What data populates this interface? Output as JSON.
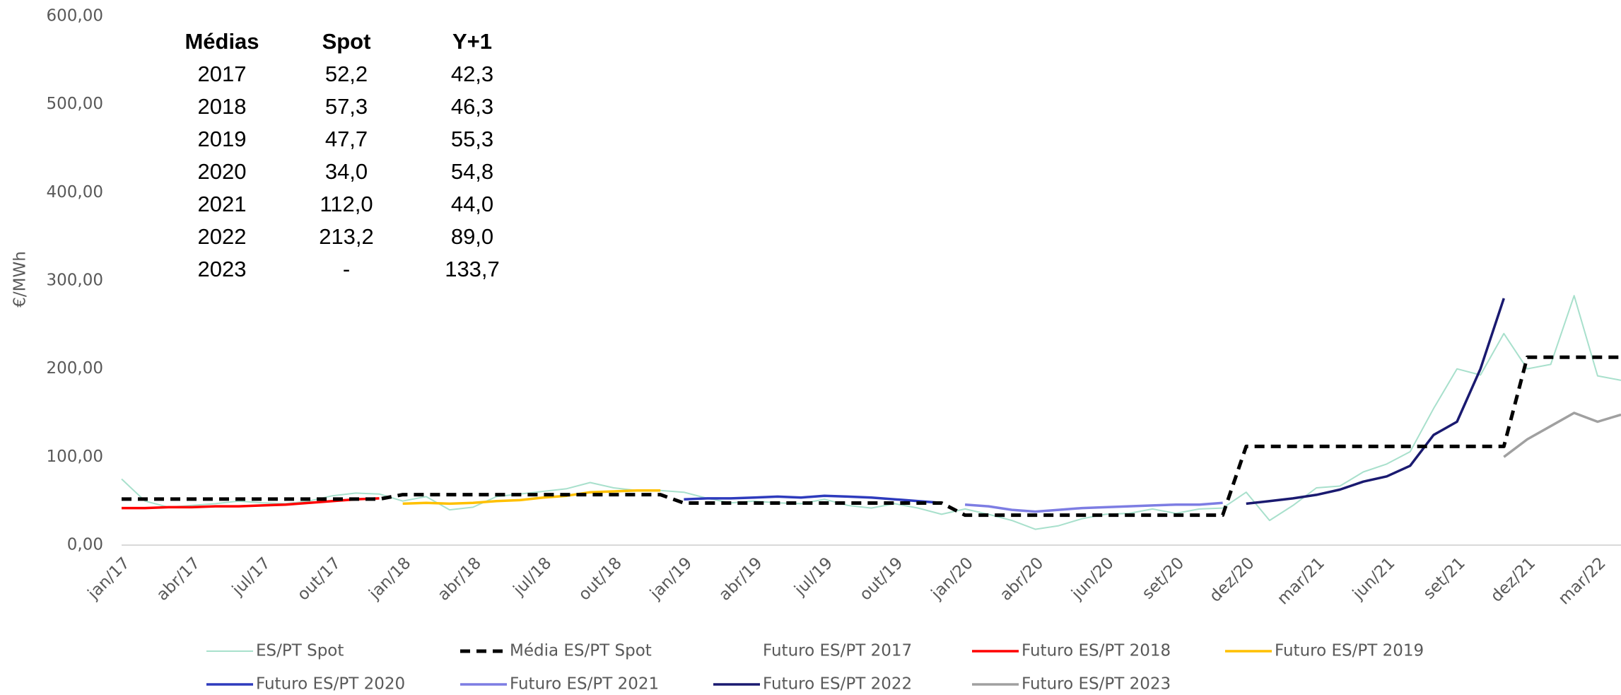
{
  "chart_data": {
    "type": "line",
    "y_label": "€/MWh",
    "ylim": [
      0,
      600
    ],
    "yticks": [
      {
        "value": 0,
        "label": "0,00"
      },
      {
        "value": 100,
        "label": "100,00"
      },
      {
        "value": 200,
        "label": "200,00"
      },
      {
        "value": 300,
        "label": "300,00"
      },
      {
        "value": 400,
        "label": "400,00"
      },
      {
        "value": 500,
        "label": "500,00"
      },
      {
        "value": 600,
        "label": "600,00"
      }
    ],
    "grid": false,
    "categories": [
      "jan/17",
      null,
      null,
      "abr/17",
      null,
      null,
      "jul/17",
      null,
      null,
      "out/17",
      null,
      null,
      "jan/18",
      null,
      null,
      "abr/18",
      null,
      null,
      "jul/18",
      null,
      null,
      "out/18",
      null,
      null,
      "jan/19",
      null,
      null,
      "abr/19",
      null,
      null,
      "jul/19",
      null,
      null,
      "out/19",
      null,
      null,
      "jan/20",
      null,
      null,
      "abr/20",
      null,
      null,
      "jun/20",
      null,
      null,
      "set/20",
      null,
      null,
      "dez/20",
      null,
      null,
      "mar/21",
      null,
      null,
      "jun/21",
      null,
      null,
      "set/21",
      null,
      null,
      "dez/21",
      null,
      null,
      "mar/22",
      null
    ],
    "series": [
      {
        "name": "ES/PT Spot",
        "color": "#a8e0cc",
        "width": 2,
        "values": [
          75,
          50,
          43,
          45,
          47,
          50,
          48,
          47,
          50,
          56,
          59,
          58,
          50,
          55,
          40,
          43,
          55,
          58,
          61,
          64,
          71,
          65,
          62,
          62,
          60,
          53,
          48,
          50,
          48,
          47,
          52,
          45,
          42,
          47,
          42,
          35,
          41,
          35,
          28,
          18,
          22,
          30,
          35,
          36,
          41,
          36,
          41,
          42,
          60,
          28,
          45,
          65,
          67,
          83,
          92,
          106,
          155,
          200,
          193,
          240,
          200,
          205,
          283,
          192,
          187
        ]
      },
      {
        "name": "Média ES/PT Spot",
        "color": "#000000",
        "width": 5,
        "dashed": true,
        "values": [
          52.2,
          52.2,
          52.2,
          52.2,
          52.2,
          52.2,
          52.2,
          52.2,
          52.2,
          52.2,
          52.2,
          52.2,
          57.3,
          57.3,
          57.3,
          57.3,
          57.3,
          57.3,
          57.3,
          57.3,
          57.3,
          57.3,
          57.3,
          57.3,
          47.7,
          47.7,
          47.7,
          47.7,
          47.7,
          47.7,
          47.7,
          47.7,
          47.7,
          47.7,
          47.7,
          47.7,
          34.0,
          34.0,
          34.0,
          34.0,
          34.0,
          34.0,
          34.0,
          34.0,
          34.0,
          34.0,
          34.0,
          34.0,
          112.0,
          112.0,
          112.0,
          112.0,
          112.0,
          112.0,
          112.0,
          112.0,
          112.0,
          112.0,
          112.0,
          112.0,
          213.2,
          213.2,
          213.2,
          213.2,
          213.2
        ]
      },
      {
        "name": "Futuro ES/PT 2017",
        "values": [
          null,
          null,
          null,
          null,
          null,
          null,
          null,
          null,
          null,
          null,
          null,
          null,
          null,
          null,
          null,
          null,
          null,
          null,
          null,
          null,
          null,
          null,
          null,
          null,
          null,
          null,
          null,
          null,
          null,
          null,
          null,
          null,
          null,
          null,
          null,
          null,
          null,
          null,
          null,
          null,
          null,
          null,
          null,
          null,
          null,
          null,
          null,
          null,
          null,
          null,
          null,
          null,
          null,
          null,
          null,
          null,
          null,
          null,
          null,
          null,
          null,
          null,
          null,
          null,
          null
        ]
      },
      {
        "name": "Futuro ES/PT 2018",
        "color": "#ff0000",
        "width": 3.5,
        "values": [
          42,
          42,
          43,
          43,
          44,
          44,
          45,
          46,
          48,
          50,
          52,
          53,
          null,
          null,
          null,
          null,
          null,
          null,
          null,
          null,
          null,
          null,
          null,
          null,
          null,
          null,
          null,
          null,
          null,
          null,
          null,
          null,
          null,
          null,
          null,
          null,
          null,
          null,
          null,
          null,
          null,
          null,
          null,
          null,
          null,
          null,
          null,
          null,
          null,
          null,
          null,
          null,
          null,
          null,
          null,
          null,
          null,
          null,
          null,
          null,
          null,
          null,
          null,
          null,
          null
        ]
      },
      {
        "name": "Futuro ES/PT 2019",
        "color": "#ffc000",
        "width": 3.5,
        "values": [
          null,
          null,
          null,
          null,
          null,
          null,
          null,
          null,
          null,
          null,
          null,
          null,
          47,
          48,
          47,
          48,
          50,
          51,
          54,
          56,
          60,
          61,
          62,
          62,
          null,
          null,
          null,
          null,
          null,
          null,
          null,
          null,
          null,
          null,
          null,
          null,
          null,
          null,
          null,
          null,
          null,
          null,
          null,
          null,
          null,
          null,
          null,
          null,
          null,
          null,
          null,
          null,
          null,
          null,
          null,
          null,
          null,
          null,
          null,
          null,
          null,
          null,
          null,
          null,
          null
        ]
      },
      {
        "name": "Futuro ES/PT 2020",
        "color": "#2e3bbd",
        "width": 3.5,
        "values": [
          null,
          null,
          null,
          null,
          null,
          null,
          null,
          null,
          null,
          null,
          null,
          null,
          null,
          null,
          null,
          null,
          null,
          null,
          null,
          null,
          null,
          null,
          null,
          null,
          52,
          53,
          53,
          54,
          55,
          54,
          56,
          55,
          54,
          52,
          50,
          48,
          null,
          null,
          null,
          null,
          null,
          null,
          null,
          null,
          null,
          null,
          null,
          null,
          null,
          null,
          null,
          null,
          null,
          null,
          null,
          null,
          null,
          null,
          null,
          null,
          null,
          null,
          null,
          null,
          null
        ]
      },
      {
        "name": "Futuro ES/PT 2021",
        "color": "#7d7de3",
        "width": 3.5,
        "values": [
          null,
          null,
          null,
          null,
          null,
          null,
          null,
          null,
          null,
          null,
          null,
          null,
          null,
          null,
          null,
          null,
          null,
          null,
          null,
          null,
          null,
          null,
          null,
          null,
          null,
          null,
          null,
          null,
          null,
          null,
          null,
          null,
          null,
          null,
          null,
          null,
          46,
          44,
          40,
          38,
          40,
          42,
          43,
          44,
          45,
          46,
          46,
          48,
          null,
          null,
          null,
          null,
          null,
          null,
          null,
          null,
          null,
          null,
          null,
          null,
          null,
          null,
          null,
          null,
          null
        ]
      },
      {
        "name": "Futuro ES/PT 2022",
        "color": "#1a1a70",
        "width": 3.5,
        "values": [
          null,
          null,
          null,
          null,
          null,
          null,
          null,
          null,
          null,
          null,
          null,
          null,
          null,
          null,
          null,
          null,
          null,
          null,
          null,
          null,
          null,
          null,
          null,
          null,
          null,
          null,
          null,
          null,
          null,
          null,
          null,
          null,
          null,
          null,
          null,
          null,
          null,
          null,
          null,
          null,
          null,
          null,
          null,
          null,
          null,
          null,
          null,
          null,
          47,
          50,
          53,
          57,
          63,
          72,
          78,
          90,
          125,
          140,
          200,
          280,
          null,
          null,
          null,
          null,
          null
        ]
      },
      {
        "name": "Futuro ES/PT 2023",
        "color": "#a0a0a0",
        "width": 3.5,
        "values": [
          null,
          null,
          null,
          null,
          null,
          null,
          null,
          null,
          null,
          null,
          null,
          null,
          null,
          null,
          null,
          null,
          null,
          null,
          null,
          null,
          null,
          null,
          null,
          null,
          null,
          null,
          null,
          null,
          null,
          null,
          null,
          null,
          null,
          null,
          null,
          null,
          null,
          null,
          null,
          null,
          null,
          null,
          null,
          null,
          null,
          null,
          null,
          null,
          null,
          null,
          null,
          null,
          null,
          null,
          null,
          null,
          null,
          null,
          null,
          100,
          120,
          135,
          150,
          140,
          148
        ]
      }
    ],
    "table": {
      "header": [
        "Médias",
        "Spot",
        "Y+1"
      ],
      "rows": [
        [
          "2017",
          "52,2",
          "42,3"
        ],
        [
          "2018",
          "57,3",
          "46,3"
        ],
        [
          "2019",
          "47,7",
          "55,3"
        ],
        [
          "2020",
          "34,0",
          "54,8"
        ],
        [
          "2021",
          "112,0",
          "44,0"
        ],
        [
          "2022",
          "213,2",
          "89,0"
        ],
        [
          "2023",
          "-",
          "133,7"
        ]
      ]
    }
  }
}
